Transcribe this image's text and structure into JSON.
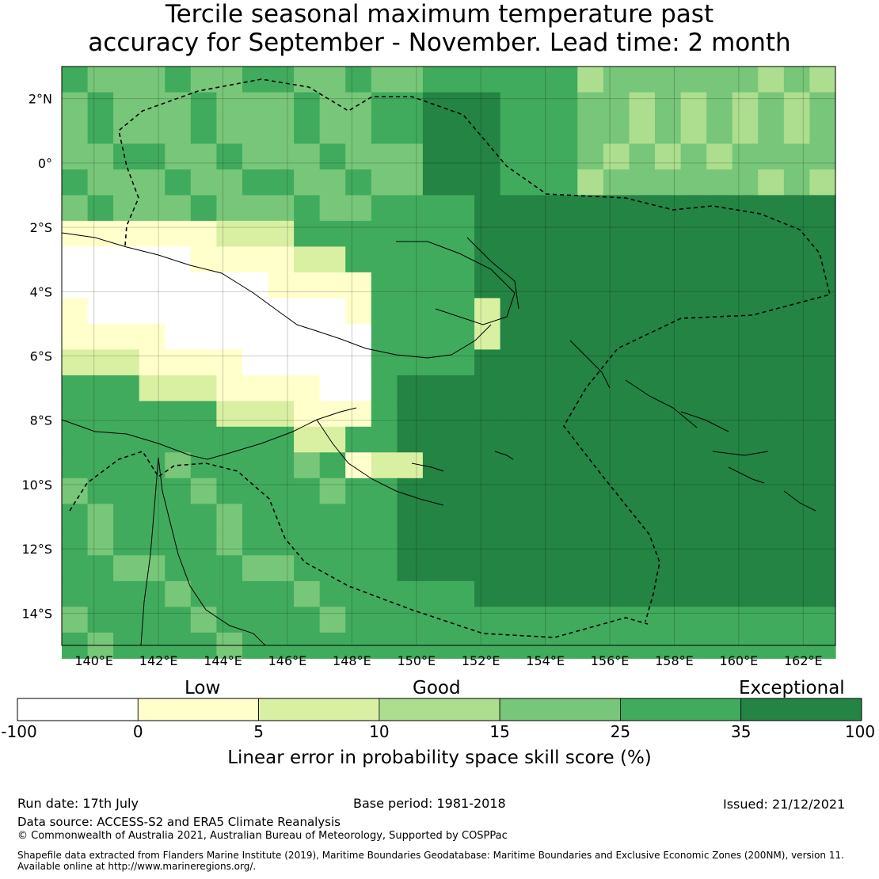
{
  "title_line1": "Tercile seasonal maximum temperature past",
  "title_line2": "accuracy for September - November. Lead time: 2 month",
  "map": {
    "lon_labels": [
      "140°E",
      "142°E",
      "144°E",
      "146°E",
      "148°E",
      "150°E",
      "152°E",
      "154°E",
      "156°E",
      "158°E",
      "160°E",
      "162°E"
    ],
    "lat_labels": [
      "2°N",
      "0°",
      "2°S",
      "4°S",
      "6°S",
      "8°S",
      "10°S",
      "12°S",
      "14°S"
    ],
    "lon_range": [
      139,
      163
    ],
    "lat_range": [
      -15,
      3
    ]
  },
  "legend": {
    "categories": [
      "Low",
      "Good",
      "Exceptional"
    ],
    "ticks": [
      "-100",
      "0",
      "5",
      "10",
      "15",
      "25",
      "35",
      "100"
    ],
    "colors": [
      "#ffffff",
      "#ffffcc",
      "#d9f0a3",
      "#addd8e",
      "#78c679",
      "#41ab5d",
      "#238443"
    ],
    "title": "Linear error in probability space skill score (%)"
  },
  "footer": {
    "run_date": "Run date: 17th July",
    "base_period": "Base period: 1981-2018",
    "issued": "Issued: 21/12/2021",
    "data_source": "Data source: ACCESS-S2 and ERA5 Climate Reanalysis",
    "copyright": "© Commonwealth of Australia 2021, Australian Bureau of Meteorology, Supported by COSPPac",
    "shapefile_line1": "Shapefile data extracted from Flanders Marine Institute (2019), Maritime Boundaries Geodatabase: Maritime Boundaries and Exclusive Economic Zones (200NM), version 11.",
    "shapefile_line2": "Available online at http://www.marineregions.org/."
  }
}
